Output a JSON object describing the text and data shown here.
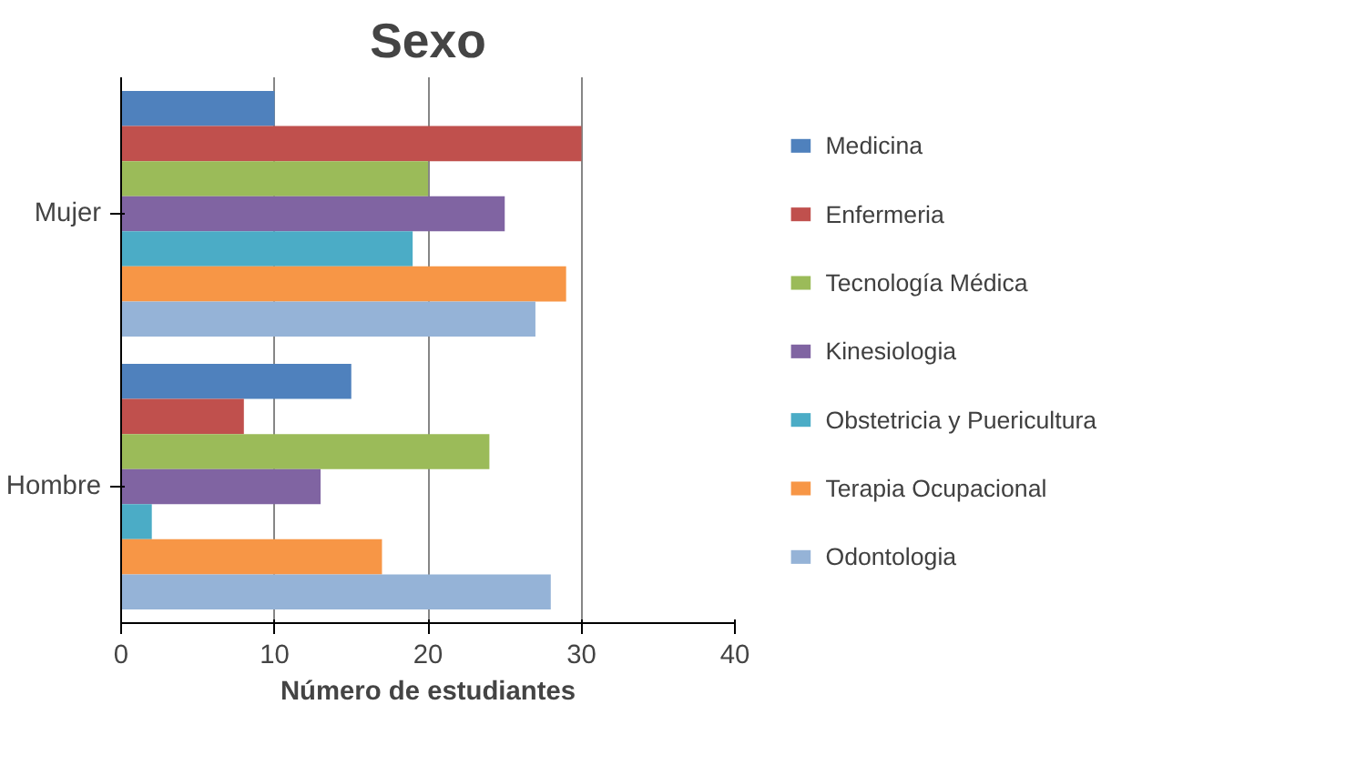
{
  "chart_data": {
    "type": "bar",
    "orientation": "horizontal",
    "title": "Sexo",
    "xlabel": "Número de estudiantes",
    "categories": [
      "Mujer",
      "Hombre"
    ],
    "series": [
      {
        "name": "Medicina",
        "color": "#4f81bd",
        "values": [
          10,
          15
        ]
      },
      {
        "name": "Enfermeria",
        "color": "#c0504d",
        "values": [
          30,
          8
        ]
      },
      {
        "name": "Tecnología Médica",
        "color": "#9bbb59",
        "values": [
          20,
          24
        ]
      },
      {
        "name": "Kinesiologia",
        "color": "#8064a2",
        "values": [
          25,
          13
        ]
      },
      {
        "name": "Obstetricia y Puericultura",
        "color": "#4bacc6",
        "values": [
          19,
          2
        ]
      },
      {
        "name": "Terapia Ocupacional",
        "color": "#f79646",
        "values": [
          29,
          17
        ]
      },
      {
        "name": "Odontologia",
        "color": "#95b3d7",
        "values": [
          27,
          28
        ]
      }
    ],
    "xlim": [
      0,
      40
    ],
    "xticks": [
      0,
      10,
      20,
      30,
      40
    ],
    "grid": "x",
    "legend": "right"
  }
}
